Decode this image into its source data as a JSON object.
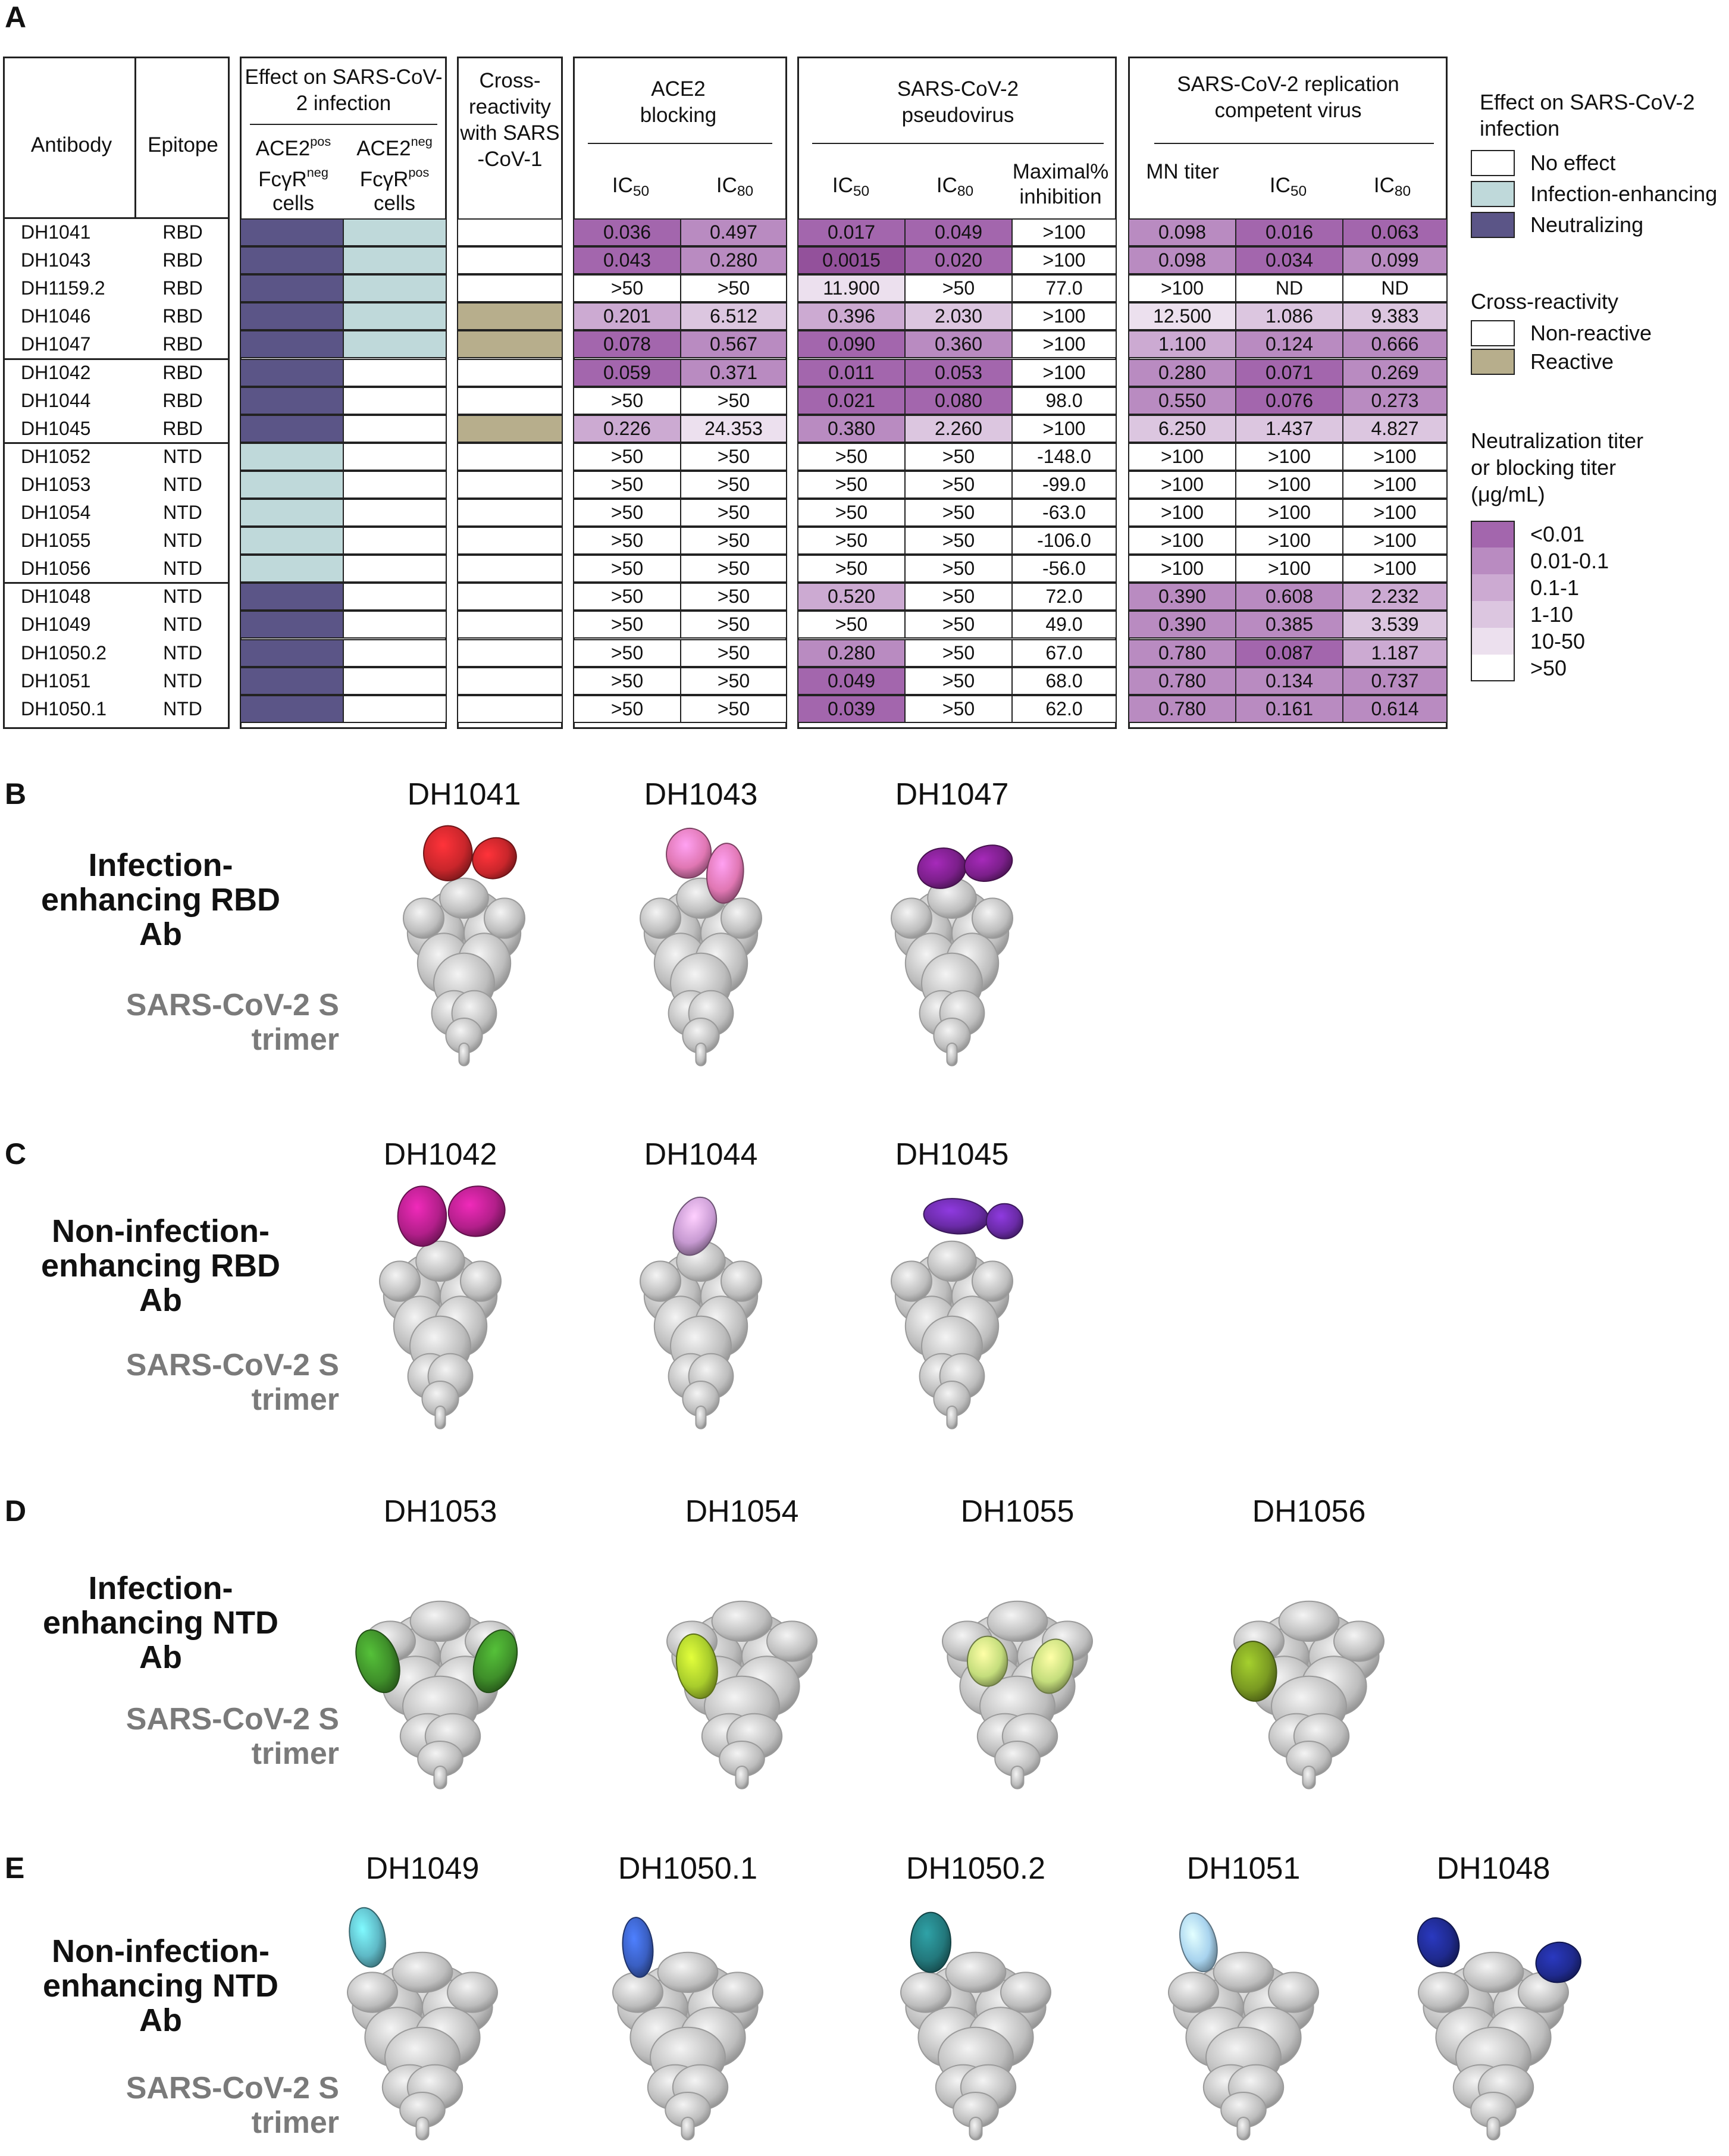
{
  "panels": {
    "A": "A",
    "B": "B",
    "C": "C",
    "D": "D",
    "E": "E"
  },
  "table": {
    "headers": {
      "antibody": "Antibody",
      "epitope": "Epitope",
      "effect_title": "Effect on SARS-CoV-2 infection",
      "effect_col1_a": "ACE2",
      "effect_col1_a_sup": "pos",
      "effect_col1_b": "FcγR",
      "effect_col1_b_sup": "neg",
      "effect_col1_c": "cells",
      "effect_col2_a": "ACE2",
      "effect_col2_a_sup": "neg",
      "effect_col2_b": "FcγR",
      "effect_col2_b_sup": "pos",
      "effect_col2_c": "cells",
      "cross_title": "Cross-reactivity with SARS -CoV-1",
      "ace2_title": "ACE2 blocking",
      "pseudo_title": "SARS-CoV-2 pseudovirus",
      "live_title": "SARS-CoV-2 replication competent virus",
      "ic": "IC",
      "ic50_sub": "50",
      "ic80_sub": "80",
      "maximal": "Maximal% inhibition",
      "mn_titer": "MN titer"
    },
    "rows": [
      {
        "ab": "DH1041",
        "ep": "RBD",
        "eff1": "neutralizing",
        "eff2": "enhancing",
        "cross": "none",
        "ace2": [
          "0.036",
          "0.497"
        ],
        "ace2_c": [
          "c1",
          "c2"
        ],
        "pseudo": [
          "0.017",
          "0.049",
          ">100"
        ],
        "pseudo_c": [
          "c1",
          "c1",
          "c6"
        ],
        "live": [
          "0.098",
          "0.016",
          "0.063"
        ],
        "live_c": [
          "c2",
          "c1",
          "c1"
        ]
      },
      {
        "ab": "DH1043",
        "ep": "RBD",
        "eff1": "neutralizing",
        "eff2": "enhancing",
        "cross": "none",
        "ace2": [
          "0.043",
          "0.280"
        ],
        "ace2_c": [
          "c1",
          "c2"
        ],
        "pseudo": [
          "0.0015",
          "0.020",
          ">100"
        ],
        "pseudo_c": [
          "c0",
          "c1",
          "c6"
        ],
        "live": [
          "0.098",
          "0.034",
          "0.099"
        ],
        "live_c": [
          "c2",
          "c1",
          "c2"
        ]
      },
      {
        "ab": "DH1159.2",
        "ep": "RBD",
        "eff1": "neutralizing",
        "eff2": "enhancing",
        "cross": "none",
        "ace2": [
          ">50",
          ">50"
        ],
        "ace2_c": [
          "c6",
          "c6"
        ],
        "pseudo": [
          "11.900",
          ">50",
          "77.0"
        ],
        "pseudo_c": [
          "c5",
          "c6",
          "c6"
        ],
        "live": [
          ">100",
          "ND",
          "ND"
        ],
        "live_c": [
          "c6",
          "c6",
          "c6"
        ]
      },
      {
        "ab": "DH1046",
        "ep": "RBD",
        "eff1": "neutralizing",
        "eff2": "enhancing",
        "cross": "reactive",
        "ace2": [
          "0.201",
          "6.512"
        ],
        "ace2_c": [
          "c3",
          "c4"
        ],
        "pseudo": [
          "0.396",
          "2.030",
          ">100"
        ],
        "pseudo_c": [
          "c3",
          "c4",
          "c6"
        ],
        "live": [
          "12.500",
          "1.086",
          "9.383"
        ],
        "live_c": [
          "c5",
          "c4",
          "c4"
        ]
      },
      {
        "ab": "DH1047",
        "ep": "RBD",
        "eff1": "neutralizing",
        "eff2": "enhancing",
        "cross": "reactive",
        "ace2": [
          "0.078",
          "0.567"
        ],
        "ace2_c": [
          "c1",
          "c2"
        ],
        "pseudo": [
          "0.090",
          "0.360",
          ">100"
        ],
        "pseudo_c": [
          "c1",
          "c2",
          "c6"
        ],
        "live": [
          "1.100",
          "0.124",
          "0.666"
        ],
        "live_c": [
          "c3",
          "c2",
          "c2"
        ]
      },
      {
        "ab": "DH1042",
        "ep": "RBD",
        "eff1": "neutralizing",
        "eff2": "none",
        "cross": "none",
        "ace2": [
          "0.059",
          "0.371"
        ],
        "ace2_c": [
          "c1",
          "c2"
        ],
        "pseudo": [
          "0.011",
          "0.053",
          ">100"
        ],
        "pseudo_c": [
          "c1",
          "c1",
          "c6"
        ],
        "live": [
          "0.280",
          "0.071",
          "0.269"
        ],
        "live_c": [
          "c2",
          "c1",
          "c2"
        ]
      },
      {
        "ab": "DH1044",
        "ep": "RBD",
        "eff1": "neutralizing",
        "eff2": "none",
        "cross": "none",
        "ace2": [
          ">50",
          ">50"
        ],
        "ace2_c": [
          "c6",
          "c6"
        ],
        "pseudo": [
          "0.021",
          "0.080",
          "98.0"
        ],
        "pseudo_c": [
          "c1",
          "c1",
          "c6"
        ],
        "live": [
          "0.550",
          "0.076",
          "0.273"
        ],
        "live_c": [
          "c2",
          "c1",
          "c2"
        ]
      },
      {
        "ab": "DH1045",
        "ep": "RBD",
        "eff1": "neutralizing",
        "eff2": "none",
        "cross": "reactive",
        "ace2": [
          "0.226",
          "24.353"
        ],
        "ace2_c": [
          "c3",
          "c5"
        ],
        "pseudo": [
          "0.380",
          "2.260",
          ">100"
        ],
        "pseudo_c": [
          "c2",
          "c4",
          "c6"
        ],
        "live": [
          "6.250",
          "1.437",
          "4.827"
        ],
        "live_c": [
          "c4",
          "c4",
          "c4"
        ]
      },
      {
        "ab": "DH1052",
        "ep": "NTD",
        "eff1": "enhancing",
        "eff2": "none",
        "cross": "none",
        "ace2": [
          ">50",
          ">50"
        ],
        "ace2_c": [
          "c6",
          "c6"
        ],
        "pseudo": [
          ">50",
          ">50",
          "-148.0"
        ],
        "pseudo_c": [
          "c6",
          "c6",
          "c6"
        ],
        "live": [
          ">100",
          ">100",
          ">100"
        ],
        "live_c": [
          "c6",
          "c6",
          "c6"
        ]
      },
      {
        "ab": "DH1053",
        "ep": "NTD",
        "eff1": "enhancing",
        "eff2": "none",
        "cross": "none",
        "ace2": [
          ">50",
          ">50"
        ],
        "ace2_c": [
          "c6",
          "c6"
        ],
        "pseudo": [
          ">50",
          ">50",
          "-99.0"
        ],
        "pseudo_c": [
          "c6",
          "c6",
          "c6"
        ],
        "live": [
          ">100",
          ">100",
          ">100"
        ],
        "live_c": [
          "c6",
          "c6",
          "c6"
        ]
      },
      {
        "ab": "DH1054",
        "ep": "NTD",
        "eff1": "enhancing",
        "eff2": "none",
        "cross": "none",
        "ace2": [
          ">50",
          ">50"
        ],
        "ace2_c": [
          "c6",
          "c6"
        ],
        "pseudo": [
          ">50",
          ">50",
          "-63.0"
        ],
        "pseudo_c": [
          "c6",
          "c6",
          "c6"
        ],
        "live": [
          ">100",
          ">100",
          ">100"
        ],
        "live_c": [
          "c6",
          "c6",
          "c6"
        ]
      },
      {
        "ab": "DH1055",
        "ep": "NTD",
        "eff1": "enhancing",
        "eff2": "none",
        "cross": "none",
        "ace2": [
          ">50",
          ">50"
        ],
        "ace2_c": [
          "c6",
          "c6"
        ],
        "pseudo": [
          ">50",
          ">50",
          "-106.0"
        ],
        "pseudo_c": [
          "c6",
          "c6",
          "c6"
        ],
        "live": [
          ">100",
          ">100",
          ">100"
        ],
        "live_c": [
          "c6",
          "c6",
          "c6"
        ]
      },
      {
        "ab": "DH1056",
        "ep": "NTD",
        "eff1": "enhancing",
        "eff2": "none",
        "cross": "none",
        "ace2": [
          ">50",
          ">50"
        ],
        "ace2_c": [
          "c6",
          "c6"
        ],
        "pseudo": [
          ">50",
          ">50",
          "-56.0"
        ],
        "pseudo_c": [
          "c6",
          "c6",
          "c6"
        ],
        "live": [
          ">100",
          ">100",
          ">100"
        ],
        "live_c": [
          "c6",
          "c6",
          "c6"
        ]
      },
      {
        "ab": "DH1048",
        "ep": "NTD",
        "eff1": "neutralizing",
        "eff2": "none",
        "cross": "none",
        "ace2": [
          ">50",
          ">50"
        ],
        "ace2_c": [
          "c6",
          "c6"
        ],
        "pseudo": [
          "0.520",
          ">50",
          "72.0"
        ],
        "pseudo_c": [
          "c3",
          "c6",
          "c6"
        ],
        "live": [
          "0.390",
          "0.608",
          "2.232"
        ],
        "live_c": [
          "c2",
          "c2",
          "c3"
        ]
      },
      {
        "ab": "DH1049",
        "ep": "NTD",
        "eff1": "neutralizing",
        "eff2": "none",
        "cross": "none",
        "ace2": [
          ">50",
          ">50"
        ],
        "ace2_c": [
          "c6",
          "c6"
        ],
        "pseudo": [
          ">50",
          ">50",
          "49.0"
        ],
        "pseudo_c": [
          "c6",
          "c6",
          "c6"
        ],
        "live": [
          "0.390",
          "0.385",
          "3.539"
        ],
        "live_c": [
          "c2",
          "c2",
          "c4"
        ]
      },
      {
        "ab": "DH1050.2",
        "ep": "NTD",
        "eff1": "neutralizing",
        "eff2": "none",
        "cross": "none",
        "ace2": [
          ">50",
          ">50"
        ],
        "ace2_c": [
          "c6",
          "c6"
        ],
        "pseudo": [
          "0.280",
          ">50",
          "67.0"
        ],
        "pseudo_c": [
          "c2",
          "c6",
          "c6"
        ],
        "live": [
          "0.780",
          "0.087",
          "1.187"
        ],
        "live_c": [
          "c2",
          "c1",
          "c3"
        ]
      },
      {
        "ab": "DH1051",
        "ep": "NTD",
        "eff1": "neutralizing",
        "eff2": "none",
        "cross": "none",
        "ace2": [
          ">50",
          ">50"
        ],
        "ace2_c": [
          "c6",
          "c6"
        ],
        "pseudo": [
          "0.049",
          ">50",
          "68.0"
        ],
        "pseudo_c": [
          "c1",
          "c6",
          "c6"
        ],
        "live": [
          "0.780",
          "0.134",
          "0.737"
        ],
        "live_c": [
          "c2",
          "c2",
          "c2"
        ]
      },
      {
        "ab": "DH1050.1",
        "ep": "NTD",
        "eff1": "neutralizing",
        "eff2": "none",
        "cross": "none",
        "ace2": [
          ">50",
          ">50"
        ],
        "ace2_c": [
          "c6",
          "c6"
        ],
        "pseudo": [
          "0.039",
          ">50",
          "62.0"
        ],
        "pseudo_c": [
          "c1",
          "c6",
          "c6"
        ],
        "live": [
          "0.780",
          "0.161",
          "0.614"
        ],
        "live_c": [
          "c2",
          "c2",
          "c2"
        ]
      }
    ]
  },
  "legend": {
    "effect_title": "Effect on SARS-CoV-2 infection",
    "no_effect": "No effect",
    "enhancing": "Infection-enhancing",
    "neutralizing": "Neutralizing",
    "cross_title": "Cross-reactivity",
    "non_reactive": "Non-reactive",
    "reactive": "Reactive",
    "titer_title": "Neutralization titer or blocking titer (μg/mL)",
    "titer_bins": [
      "<0.01",
      "0.01-0.1",
      "0.1-1",
      "1-10",
      "10-50",
      ">50"
    ]
  },
  "colors": {
    "neutralizing": "#5b5587",
    "enhancing": "#bfd9da",
    "reactive": "#b7ae8c",
    "none": "#ffffff",
    "c0": "#93519b",
    "c1": "#a366ad",
    "c2": "#b98bc1",
    "c3": "#ccaad2",
    "c4": "#dcc6e0",
    "c5": "#ece0ee",
    "c6": "#ffffff"
  },
  "trimer_label": "SARS-CoV-2 S trimer",
  "sections": {
    "B": {
      "category": "Infection-enhancing RBD Ab",
      "maps": [
        {
          "name": "DH1041",
          "color": "#c9262b"
        },
        {
          "name": "DH1043",
          "color": "#e077b3"
        },
        {
          "name": "DH1047",
          "color": "#7b1f8a"
        }
      ]
    },
    "C": {
      "category": "Non-infection-enhancing RBD Ab",
      "maps": [
        {
          "name": "DH1042",
          "color": "#b21f8a"
        },
        {
          "name": "DH1044",
          "color": "#c79ad2"
        },
        {
          "name": "DH1045",
          "color": "#6a2ba6"
        }
      ]
    },
    "D": {
      "category": "Infection-enhancing NTD Ab",
      "maps": [
        {
          "name": "DH1053",
          "color": "#3f8f2a"
        },
        {
          "name": "DH1054",
          "color": "#a8cc2c"
        },
        {
          "name": "DH1055",
          "color": "#c4dd7c"
        },
        {
          "name": "DH1056",
          "color": "#7a9a22"
        }
      ]
    },
    "E": {
      "category": "Non-infection-enhancing NTD Ab",
      "maps": [
        {
          "name": "DH1049",
          "color": "#5fb9c6"
        },
        {
          "name": "DH1050.1",
          "color": "#3a5fc2"
        },
        {
          "name": "DH1050.2",
          "color": "#23787c"
        },
        {
          "name": "DH1051",
          "color": "#a8d3ee"
        },
        {
          "name": "DH1048",
          "color": "#1f2a8e"
        }
      ]
    }
  }
}
